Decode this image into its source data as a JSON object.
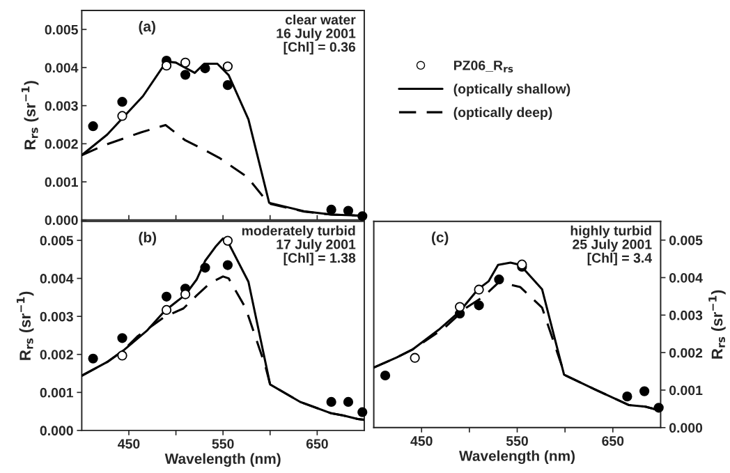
{
  "chart_data": [
    {
      "type": "line",
      "xlim": [
        400,
        700
      ],
      "ylim": [
        0,
        0.0055
      ],
      "yticks": [
        {
          "value": 0,
          "label": "0.000"
        },
        {
          "value": 0.001,
          "label": "0.001"
        },
        {
          "value": 0.002,
          "label": "0.002"
        },
        {
          "value": 0.003,
          "label": "0.003"
        },
        {
          "value": 0.004,
          "label": "0.004"
        },
        {
          "value": 0.005,
          "label": "0.005"
        }
      ],
      "xticks": [
        {
          "value": 450,
          "label": null
        },
        {
          "value": 500,
          "label": null
        },
        {
          "value": 550,
          "label": null
        },
        {
          "value": 600,
          "label": null
        },
        {
          "value": 650,
          "label": null
        }
      ],
      "ylabel": "R$_{rs}$ (sr$^{−1}$)",
      "tick_labels": "y",
      "grid": false,
      "legend": "right",
      "annotations": [
        "(a)",
        "clear water\n16 July 2001\n[Chl] = 0.36"
      ],
      "series": [
        {
          "type": "scatter",
          "marker": "circle",
          "color": "#000000",
          "x": [
            412,
            443,
            490,
            510,
            531,
            555,
            665,
            683,
            698
          ],
          "values": [
            0.00246,
            0.0031,
            0.00418,
            0.00381,
            0.00398,
            0.00354,
            0.00027,
            0.00024,
            0.0001
          ]
        },
        {
          "type": "scatter",
          "name": "PZ06_R$_{rs}$",
          "marker": "circle",
          "color": "#ffffff",
          "x": [
            443,
            490,
            510,
            555
          ],
          "values": [
            0.00273,
            0.00405,
            0.00413,
            0.00403
          ]
        },
        {
          "name": "(optically shallow)",
          "line_style": "solid",
          "marker": "none",
          "color": "#000000",
          "x": [
            400,
            427,
            465,
            490,
            500,
            520,
            530,
            544,
            556,
            577,
            599,
            636,
            665,
            700
          ],
          "values": [
            0.0017,
            0.00224,
            0.00325,
            0.00416,
            0.00413,
            0.00386,
            0.0041,
            0.0041,
            0.0038,
            0.00264,
            0.00045,
            0.00023,
            0.00014,
            0.00011
          ]
        },
        {
          "name": "(optically deep)",
          "line_style": "dashed",
          "marker": "none",
          "color": "#000000",
          "x": [
            400,
            425,
            463,
            489,
            510,
            527,
            546,
            576,
            595,
            599,
            636,
            665,
            700
          ],
          "values": [
            0.0017,
            0.00197,
            0.0023,
            0.00249,
            0.00209,
            0.00188,
            0.00163,
            0.00112,
            0.00054,
            0.00043,
            0.00022,
            0.00014,
            0.00011
          ]
        }
      ]
    },
    {
      "type": "line",
      "xlim": [
        400,
        700
      ],
      "ylim": [
        0,
        0.0055
      ],
      "yticks": [
        {
          "value": 0,
          "label": "0.000"
        },
        {
          "value": 0.001,
          "label": "0.001"
        },
        {
          "value": 0.002,
          "label": "0.002"
        },
        {
          "value": 0.003,
          "label": "0.003"
        },
        {
          "value": 0.004,
          "label": "0.004"
        },
        {
          "value": 0.005,
          "label": "0.005"
        }
      ],
      "xticks": [
        450,
        {
          "value": 500,
          "label": null
        },
        550,
        {
          "value": 600,
          "label": null
        },
        650
      ],
      "xlabel": "Wavelength (nm)",
      "ylabel": "R$_{rs}$ (sr$^{−1}$)",
      "grid": false,
      "annotations": [
        "(b)",
        "moderately turbid\n17 July 2001\n[Chl] = 1.38"
      ],
      "series": [
        {
          "type": "scatter",
          "marker": "circle",
          "color": "#000000",
          "x": [
            412,
            443,
            490,
            510,
            531,
            555,
            665,
            683,
            698
          ],
          "values": [
            0.00189,
            0.00243,
            0.00352,
            0.00373,
            0.00428,
            0.00435,
            0.00075,
            0.00075,
            0.00048
          ]
        },
        {
          "type": "scatter",
          "marker": "circle",
          "color": "#ffffff",
          "x": [
            443,
            490,
            510,
            555
          ],
          "values": [
            0.00197,
            0.00317,
            0.00358,
            0.00499
          ]
        },
        {
          "line_style": "solid",
          "marker": "none",
          "color": "#000000",
          "x": [
            400,
            427,
            444,
            469,
            488,
            510,
            522,
            531,
            542,
            550,
            556,
            577,
            600,
            632,
            665,
            678,
            693,
            700
          ],
          "values": [
            0.00144,
            0.0018,
            0.0021,
            0.00262,
            0.00314,
            0.00357,
            0.00397,
            0.00446,
            0.00483,
            0.00505,
            0.00492,
            0.00391,
            0.00121,
            0.00075,
            0.00045,
            0.00039,
            0.0003,
            0.00028
          ]
        },
        {
          "line_style": "dashed",
          "marker": "none",
          "color": "#000000",
          "x": [
            400,
            427,
            444,
            459,
            488,
            508,
            522,
            537,
            550,
            556,
            574,
            595,
            600,
            632,
            665,
            678,
            693,
            700
          ],
          "values": [
            0.00144,
            0.0018,
            0.0021,
            0.00247,
            0.00299,
            0.00321,
            0.00355,
            0.00389,
            0.00405,
            0.004,
            0.00322,
            0.00169,
            0.00121,
            0.00075,
            0.00045,
            0.00039,
            0.0003,
            0.00028
          ]
        }
      ]
    },
    {
      "type": "line",
      "xlim": [
        400,
        700
      ],
      "y2lim": [
        0,
        0.0055
      ],
      "y2ticks": [
        {
          "value": 0,
          "label": "0.000"
        },
        {
          "value": 0.001,
          "label": "0.001"
        },
        {
          "value": 0.002,
          "label": "0.002"
        },
        {
          "value": 0.003,
          "label": "0.003"
        },
        {
          "value": 0.004,
          "label": "0.004"
        },
        {
          "value": 0.005,
          "label": "0.005"
        }
      ],
      "xticks": [
        450,
        {
          "value": 500,
          "label": null
        },
        550,
        {
          "value": 600,
          "label": null
        },
        650
      ],
      "xlabel": "Wavelength (nm)",
      "y2label": "R$_{rs}$ (sr$^{−1}$)",
      "grid": false,
      "annotations": [
        "(c)",
        "highly turbid\n25 July 2001\n[Chl] = 3.4"
      ],
      "series": [
        {
          "type": "scatter",
          "axis": "y2",
          "marker": "circle",
          "color": "#000000",
          "x": [
            412,
            490,
            510,
            531,
            555,
            665,
            683,
            698
          ],
          "values": [
            0.00139,
            0.00304,
            0.00326,
            0.00395,
            0.00429,
            0.00083,
            0.00097,
            0.00053
          ]
        },
        {
          "type": "scatter",
          "axis": "y2",
          "marker": "circle",
          "color": "#ffffff",
          "x": [
            443,
            490,
            510,
            555
          ],
          "values": [
            0.00186,
            0.00322,
            0.00368,
            0.00435
          ]
        },
        {
          "axis": "y2",
          "line_style": "solid",
          "marker": "none",
          "color": "#000000",
          "x": [
            400,
            424,
            441,
            468,
            490,
            509,
            520,
            530,
            543,
            553,
            576,
            599,
            631,
            667,
            684,
            700
          ],
          "values": [
            0.0016,
            0.00187,
            0.00209,
            0.00261,
            0.0031,
            0.00369,
            0.0039,
            0.00434,
            0.0044,
            0.00434,
            0.00369,
            0.00141,
            0.00102,
            0.0006,
            0.00056,
            0.00045
          ]
        },
        {
          "axis": "y2",
          "line_style": "dashed",
          "marker": "none",
          "color": "#000000",
          "x": [
            400,
            424,
            441,
            473,
            497,
            514,
            531,
            553,
            576,
            597,
            599,
            631,
            667,
            684,
            700
          ],
          "values": [
            0.0016,
            0.00187,
            0.00209,
            0.00264,
            0.0032,
            0.00348,
            0.00388,
            0.00375,
            0.0032,
            0.00162,
            0.00141,
            0.00102,
            0.0006,
            0.00056,
            0.00045
          ]
        }
      ]
    }
  ]
}
